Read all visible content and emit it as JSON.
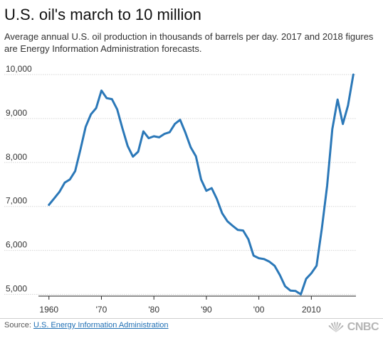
{
  "header": {
    "title": "U.S. oil's march to 10 million",
    "subtitle": "Average annual U.S. oil production in thousands of barrels per day. 2017 and 2018 figures are Energy Information Administration forecasts."
  },
  "footer": {
    "source_label": "Source:",
    "source_link": "U.S. Energy Information Administration",
    "logo_text": "CNBC"
  },
  "colors": {
    "line": "#2b78b8",
    "grid": "#d6d6d6",
    "axis": "#222222",
    "link": "#1f6fb4",
    "logo": "#b5b5b5"
  },
  "chart_data": {
    "type": "line",
    "title": "U.S. oil's march to 10 million",
    "xlabel": "",
    "ylabel": "",
    "xlim": [
      1958,
      2018.5
    ],
    "ylim": [
      4960,
      10000
    ],
    "grid": true,
    "yticks": [
      10000,
      9000,
      8000,
      7000,
      6000,
      5000
    ],
    "ytick_labels": [
      "10,000",
      "9,000",
      "8,000",
      "7,000",
      "6,000",
      "5,000"
    ],
    "xticks": [
      1960,
      1970,
      1980,
      1990,
      2000,
      2010
    ],
    "xtick_labels": [
      "1960",
      "'70",
      "'80",
      "'90",
      "'00",
      "2010"
    ],
    "series": [
      {
        "name": "",
        "x": [
          1960,
          1961,
          1962,
          1963,
          1964,
          1965,
          1966,
          1967,
          1968,
          1969,
          1970,
          1971,
          1972,
          1973,
          1974,
          1975,
          1976,
          1977,
          1978,
          1979,
          1980,
          1981,
          1982,
          1983,
          1984,
          1985,
          1986,
          1987,
          1988,
          1989,
          1990,
          1991,
          1992,
          1993,
          1994,
          1995,
          1996,
          1997,
          1998,
          1999,
          2000,
          2001,
          2002,
          2003,
          2004,
          2005,
          2006,
          2007,
          2008,
          2009,
          2010,
          2011,
          2012,
          2013,
          2014,
          2015,
          2016,
          2017,
          2018
        ],
        "values": [
          7035,
          7183,
          7332,
          7542,
          7614,
          7804,
          8295,
          8810,
          9096,
          9238,
          9637,
          9463,
          9441,
          9208,
          8774,
          8375,
          8132,
          8245,
          8707,
          8552,
          8597,
          8572,
          8649,
          8688,
          8879,
          8971,
          8680,
          8349,
          8140,
          7613,
          7355,
          7417,
          7171,
          6847,
          6662,
          6560,
          6465,
          6452,
          6252,
          5881,
          5822,
          5801,
          5744,
          5649,
          5441,
          5184,
          5086,
          5077,
          5000,
          5353,
          5478,
          5652,
          6500,
          7467,
          8759,
          9431,
          8875,
          9300,
          10000
        ]
      }
    ]
  }
}
